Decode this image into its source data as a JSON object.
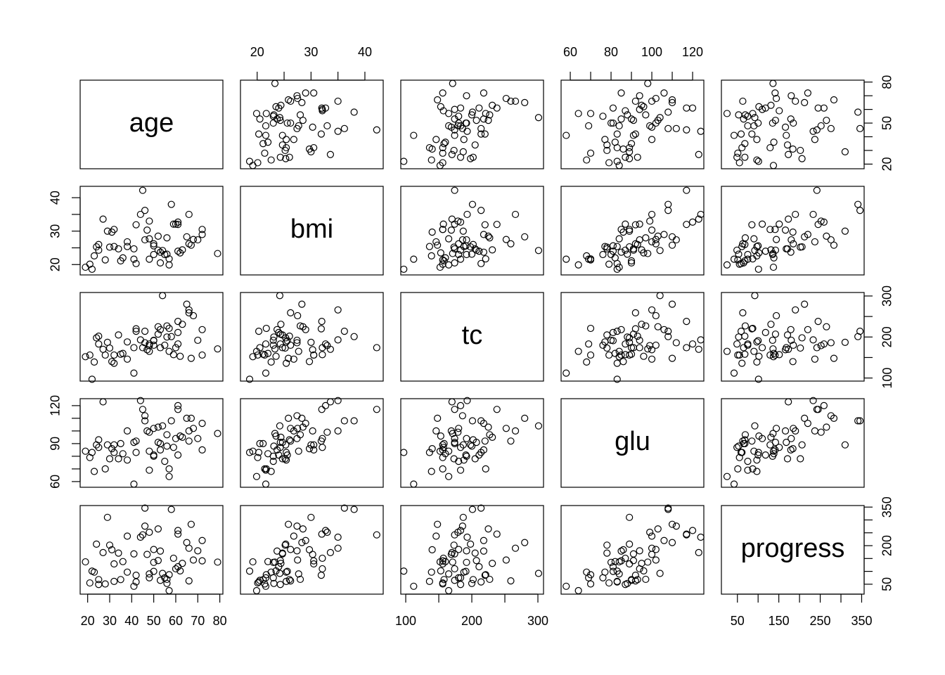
{
  "chart_data": {
    "type": "scatter_matrix",
    "variables": [
      {
        "name": "age",
        "lim": [
          16.6,
          81.4
        ],
        "xticks": [
          20,
          30,
          40,
          50,
          60,
          70,
          80
        ],
        "xminor": [],
        "yticks": [
          20,
          50,
          80
        ],
        "yminor": [
          30,
          40,
          60,
          70
        ],
        "values": [
          59,
          48,
          72,
          24,
          50,
          23,
          36,
          66,
          60,
          29,
          22,
          56,
          53,
          50,
          61,
          34,
          47,
          68,
          38,
          41,
          35,
          25,
          25,
          61,
          31,
          30,
          19,
          42,
          63,
          67,
          32,
          42,
          58,
          57,
          53,
          62,
          52,
          46,
          48,
          48,
          50,
          21,
          32,
          54,
          61,
          56,
          66,
          52,
          55,
          45,
          79,
          72,
          44,
          41,
          27,
          70,
          38,
          28,
          65,
          46,
          57
        ]
      },
      {
        "name": "bmi",
        "lim": [
          16.9,
          43.4
        ],
        "xticks": [
          20,
          30,
          40
        ],
        "xminor": [
          25,
          35
        ],
        "yticks": [
          20,
          30,
          40
        ],
        "yminor": [
          25,
          35
        ],
        "values": [
          32.1,
          21.6,
          30.5,
          25.3,
          23.0,
          22.6,
          22.0,
          26.2,
          32.1,
          30.0,
          18.6,
          28.0,
          23.7,
          26.2,
          24.0,
          24.7,
          30.3,
          27.5,
          25.4,
          24.7,
          21.1,
          24.3,
          26.0,
          32.0,
          29.7,
          25.2,
          19.2,
          31.9,
          24.4,
          25.8,
          30.5,
          20.3,
          38.0,
          21.7,
          20.5,
          23.5,
          28.5,
          27.4,
          33.0,
          27.7,
          25.6,
          20.1,
          25.4,
          24.2,
          32.7,
          23.1,
          35.0,
          24.3,
          23.0,
          42.2,
          23.3,
          29.0,
          35.0,
          21.6,
          33.6,
          27.4,
          26.8,
          21.4,
          28.3,
          36.2,
          19.9
        ]
      },
      {
        "name": "tc",
        "lim": [
          92.5,
          308.5
        ],
        "xticks": [
          100,
          200,
          300
        ],
        "xminor": [
          150,
          250
        ],
        "yticks": [
          100,
          200,
          300
        ],
        "yminor": [
          150,
          250
        ],
        "values": [
          157,
          183,
          156,
          198,
          192,
          139,
          160,
          259,
          174,
          187,
          97,
          227,
          218,
          180,
          211,
          205,
          169,
          252,
          188,
          174,
          158,
          183,
          202,
          238,
          140,
          173,
          152,
          220,
          231,
          148,
          156,
          214,
          201,
          221,
          174,
          153,
          225,
          186,
          179,
          165,
          191,
          156,
          136,
          301,
          183,
          200,
          266,
          207,
          180,
          174,
          171,
          218,
          193,
          112,
          170,
          192,
          146,
          156,
          280,
          214,
          165
        ]
      },
      {
        "name": "glu",
        "lim": [
          55.5,
          125.5
        ],
        "xticks": [
          60,
          80,
          100,
          120
        ],
        "xminor": [
          70,
          90,
          110
        ],
        "yticks": [
          60,
          90,
          120
        ],
        "yminor": [
          70,
          80,
          100,
          110
        ],
        "values": [
          87,
          69,
          85,
          89,
          80,
          68,
          82,
          92,
          94,
          89,
          83,
          97,
          85,
          102,
          81,
          78,
          100,
          102,
          77,
          91,
          90,
          87,
          93,
          117,
          86,
          78,
          84,
          92,
          95,
          110,
          89,
          83,
          108,
          70,
          90,
          96,
          103,
          112,
          99,
          84,
          81,
          79,
          83,
          104,
          120,
          88,
          100,
          91,
          76,
          117,
          98,
          106,
          124,
          58,
          123,
          94,
          100,
          70,
          110,
          108,
          64
        ]
      },
      {
        "name": "progress",
        "lim": [
          11.4,
          356
        ],
        "xticks": [
          50,
          150,
          250,
          350
        ],
        "xminor": [
          100,
          200,
          300
        ],
        "yticks": [
          50,
          200,
          350
        ],
        "yminor": [
          100,
          150,
          250,
          300
        ],
        "values": [
          151,
          75,
          141,
          206,
          135,
          97,
          138,
          63,
          110,
          310,
          101,
          69,
          179,
          185,
          118,
          171,
          166,
          144,
          97,
          168,
          68,
          49,
          68,
          245,
          184,
          202,
          137,
          85,
          131,
          283,
          129,
          59,
          341,
          87,
          65,
          102,
          265,
          276,
          252,
          90,
          100,
          55,
          61,
          92,
          259,
          53,
          190,
          142,
          75,
          242,
          136,
          220,
          233,
          42,
          173,
          180,
          237,
          51,
          212,
          346,
          25
        ]
      }
    ]
  }
}
